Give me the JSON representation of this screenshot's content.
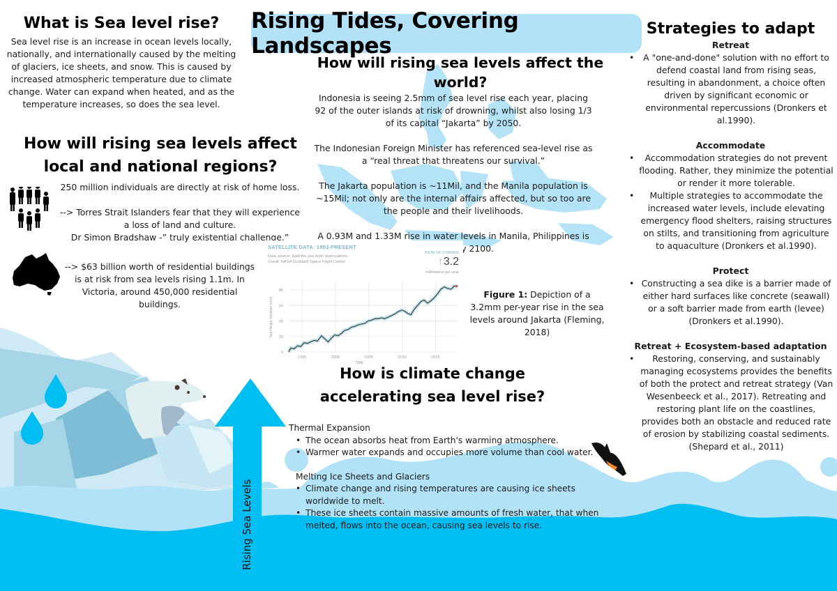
{
  "poster": {
    "title": "Rising Tides, Covering Landscapes",
    "colors": {
      "title_bg": "#b3e1f7",
      "ocean_deep": "#00bdf2",
      "ocean_light": "#b1e2f8",
      "ice_mid": "#7fbcd6",
      "ice_light": "#d0ebf5",
      "arrow": "#00bdf2"
    }
  },
  "what_is": {
    "heading": "What is Sea level rise?",
    "body": "Sea level rise is an increase in ocean levels locally, nationally, and internationally caused by the melting of glaciers, ice sheets, and snow. This is caused by increased atmospheric temperature due to climate change. Water can expand when heated, and as the temperature increases, so does the sea level."
  },
  "local": {
    "heading": "How will rising sea levels affect local and national regions?",
    "people_icon": "people-group-icon",
    "people_lines": [
      "250 million individuals are directly at risk of home loss.",
      "",
      "--> Torres Strait Islanders fear that they will experience a loss of land and culture.",
      "Dr Simon Bradshaw -” truly existential challenge.”"
    ],
    "australia_icon": "australia-map-icon",
    "australia_text": "--> $63 billion worth of residential buildings is at risk from sea levels rising 1.1m. In Victoria, around 450,000 residential buildings."
  },
  "world": {
    "heading": "How will rising sea levels affect the world?",
    "paragraphs": [
      "Indonesia is seeing 2.5mm of sea level rise each year, placing 92 of the outer islands at risk of drowning, whilst also losing 1/3 of its capital “Jakarta” by 2050.",
      "The Indonesian Foreign Minister has referenced sea-level rise as a “real threat that threatens our survival.”",
      "The Jakarta population is ~11Mil, and the Manila population is ~15Mil; not only are the internal affairs affected, but so too are the people and their livelihoods.",
      "A 0.93M and 1.33M  rise in water levels in Manila, Philippines is expected by 2100."
    ],
    "background_map": "southeast-asia-map"
  },
  "figure": {
    "label": "Figure 1:",
    "caption": " Depiction of a 3.2mm per-year rise  in the sea levels around Jakarta (Fleming, 2018)"
  },
  "chart_data": {
    "type": "line",
    "title": "SATELLITE DATA: 1993-PRESENT",
    "subtitle": [
      "Data source: Satellite sea level observations.",
      "Credit: NASA Goddard Space Flight Center"
    ],
    "rate_label": "RATE OF CHANGE",
    "rate_value": "3.2",
    "rate_unit": "millimeters per year",
    "xlabel": "TIME",
    "ylabel": "Sea Height Variation (mm)",
    "xticks": [
      1995,
      2000,
      2005,
      2010,
      2015
    ],
    "yticks": [
      0,
      20,
      40,
      60,
      80
    ],
    "xlim": [
      1993,
      2018.3
    ],
    "ylim": [
      0,
      90
    ],
    "grid": true,
    "x": [
      1993.0,
      1993.3,
      1993.8,
      1994.3,
      1994.8,
      1995.3,
      1995.8,
      1996.3,
      1996.8,
      1997.3,
      1997.9,
      1998.4,
      1998.9,
      1999.4,
      1999.9,
      2000.4,
      2000.9,
      2001.4,
      2001.9,
      2002.4,
      2002.9,
      2003.4,
      2003.9,
      2004.4,
      2004.9,
      2005.4,
      2005.9,
      2006.4,
      2006.9,
      2007.4,
      2007.9,
      2008.4,
      2008.9,
      2009.4,
      2009.9,
      2010.3,
      2010.8,
      2011.3,
      2011.8,
      2012.3,
      2012.8,
      2013.3,
      2013.8,
      2014.3,
      2014.8,
      2015.3,
      2015.8,
      2016.3,
      2016.8,
      2017.3,
      2017.8,
      2018.2
    ],
    "series": [
      {
        "name": "Sea Height Variation",
        "values": [
          0,
          5,
          4,
          8,
          7,
          12,
          11,
          13,
          15,
          14,
          21,
          17,
          13,
          18,
          22,
          21,
          24,
          28,
          29,
          32,
          33,
          35,
          36,
          37,
          40,
          41,
          43,
          43,
          44,
          43,
          45,
          47,
          49,
          52,
          54,
          53,
          50,
          48,
          55,
          60,
          65,
          67,
          63,
          66,
          70,
          75,
          81,
          84,
          82,
          81,
          85,
          85
        ]
      }
    ]
  },
  "cause": {
    "heading": "How is climate change accelerating sea level rise?",
    "sections": [
      {
        "title": "Thermal Expansion",
        "bullets": [
          "The ocean absorbs heat from Earth's warming atmosphere.",
          "Warmer water expands and occupies more volume than cool water."
        ]
      },
      {
        "title": "Melting Ice Sheets and Glaciers",
        "bullets": [
          "Climate change and rising temperatures are causing ice sheets worldwide to melt.",
          "These ice sheets contain massive amounts of fresh water, that when melted, flows into the ocean, causing sea levels to rise."
        ]
      }
    ]
  },
  "arrow": {
    "label": "Rising Sea Levels"
  },
  "strategies": {
    "heading": "Strategies to adapt",
    "groups": [
      {
        "title": "Retreat",
        "bullets": [
          "A \"one-and-done\" solution with no effort to defend coastal land from rising seas, resulting in abandonment, a choice often driven by significant economic or environmental repercussions (Dronkers et al.1990)."
        ]
      },
      {
        "title": "Accommodate",
        "bullets": [
          "Accommodation strategies do not prevent flooding. Rather, they minimize the potential or render it more tolerable.",
          "Multiple strategies to accommodate the increased water levels, include elevating emergency flood shelters, raising structures on stilts, and transitioning from agriculture to aquaculture (Dronkers et al.1990)."
        ]
      },
      {
        "title": "Protect",
        "bullets": [
          "Constructing a sea dike is a barrier made of either hard surfaces like concrete (seawall) or a soft barrier made from earth (levee) (Dronkers et al.1990)."
        ]
      },
      {
        "title": "Retreat + Ecosystem-based adaptation",
        "bullets": [
          "Restoring, conserving, and sustainably managing ecosystems provides the benefits of both the protect and retreat strategy (Van Wesenbeeck et al., 2017). Retreating and restoring plant life on the coastlines, provides both an obstacle and reduced rate of erosion by stabilizing coastal sediments. (Shepard et al., 2011)"
        ]
      }
    ]
  }
}
